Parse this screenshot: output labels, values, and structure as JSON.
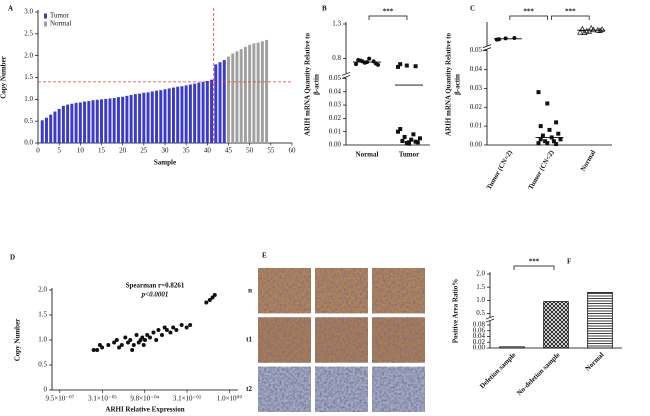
{
  "chart_data": [
    {
      "type": "bar",
      "panel": "A",
      "xlabel": "Sample",
      "ylabel": "Copy Number",
      "x": [
        1,
        2,
        3,
        4,
        5,
        6,
        7,
        8,
        9,
        10,
        11,
        12,
        13,
        14,
        15,
        16,
        17,
        18,
        19,
        20,
        21,
        22,
        23,
        24,
        25,
        26,
        27,
        28,
        29,
        30,
        31,
        32,
        33,
        34,
        35,
        36,
        37,
        38,
        39,
        40,
        41,
        42,
        43,
        44,
        45,
        46,
        47,
        48,
        49,
        50,
        51,
        52,
        53,
        54
      ],
      "series": [
        {
          "name": "Tumor",
          "color": "#3a3ad0",
          "values": [
            0.52,
            0.58,
            0.65,
            0.72,
            0.78,
            0.85,
            0.88,
            0.9,
            0.92,
            0.93,
            0.95,
            0.96,
            0.98,
            0.99,
            1.0,
            1.01,
            1.02,
            1.03,
            1.05,
            1.06,
            1.08,
            1.1,
            1.12,
            1.13,
            1.15,
            1.16,
            1.18,
            1.2,
            1.21,
            1.23,
            1.25,
            1.27,
            1.29,
            1.3,
            1.32,
            1.34,
            1.36,
            1.38,
            1.4,
            1.42,
            1.45,
            1.8,
            1.85,
            1.9,
            null,
            null,
            null,
            null,
            null,
            null,
            null,
            null,
            null,
            null
          ]
        },
        {
          "name": "Normal",
          "color": "#a0a0a0",
          "values": [
            null,
            null,
            null,
            null,
            null,
            null,
            null,
            null,
            null,
            null,
            null,
            null,
            null,
            null,
            null,
            null,
            null,
            null,
            null,
            null,
            null,
            null,
            null,
            null,
            null,
            null,
            null,
            null,
            null,
            null,
            null,
            null,
            null,
            null,
            null,
            null,
            null,
            null,
            null,
            null,
            null,
            null,
            null,
            null,
            1.98,
            2.05,
            2.1,
            2.15,
            2.2,
            2.25,
            2.28,
            2.3,
            2.33,
            2.36
          ]
        }
      ],
      "xlim": [
        0,
        60
      ],
      "xticks": [
        0,
        5,
        10,
        15,
        20,
        25,
        30,
        35,
        40,
        45,
        50,
        55,
        60
      ],
      "ylim": [
        0,
        3.0
      ],
      "yticks": [
        {
          "value": 0,
          "label": "0.0"
        },
        0.5,
        {
          "value": 1,
          "label": "1.0"
        },
        1.5,
        {
          "value": 2,
          "label": "2.0"
        },
        2.5,
        {
          "value": 3,
          "label": "3.0"
        }
      ],
      "reference_lines": {
        "y": 1.4,
        "x": 41.5,
        "color": "#e83a3a"
      },
      "legend": "upper-left"
    },
    {
      "type": "dot",
      "panel": "B",
      "ylabel": [
        "ARIH mRNA Quantity Relative to",
        "β-actin"
      ],
      "categories": [
        "Normal",
        "Tumor"
      ],
      "markers": [
        "circle",
        "square"
      ],
      "values": [
        [
          0.72,
          0.74,
          0.76,
          0.78,
          0.75,
          0.73,
          0.77,
          0.8,
          0.71,
          0.76
        ],
        [
          0.68,
          0.7,
          0.69,
          0.72,
          0.001,
          0.002,
          0.003,
          0.004,
          0.005,
          0.006,
          0.008,
          0.01,
          0.0015,
          0.0025,
          0.012,
          0.002
        ]
      ],
      "center_lines": [
        0.75,
        0.045
      ],
      "ylim": [
        0,
        1.3
      ],
      "ybreak": [
        0.05,
        0.6
      ],
      "yticks": [
        {
          "value": 0,
          "label": "0.00"
        },
        {
          "value": 0.01,
          "label": "0.01"
        },
        {
          "value": 0.02,
          "label": "0.02"
        },
        {
          "value": 0.03,
          "label": "0.03"
        },
        {
          "value": 0.04,
          "label": "0.04"
        },
        {
          "value": 0.05,
          "label": "0.05"
        },
        0.8,
        1.3
      ],
      "annotations": [
        {
          "text": "***",
          "between": [
            0,
            1
          ]
        }
      ]
    },
    {
      "type": "dot",
      "panel": "C",
      "ylabel": [
        "ARIH mRNA Quantity Relative to",
        "β-actin"
      ],
      "categories": [
        "Tumor (CN=2)",
        "Tumor (CN<2)",
        "Normal"
      ],
      "markers": [
        "circle",
        "square",
        "triangle"
      ],
      "values": [
        [
          0.52,
          0.55,
          0.56,
          0.53
        ],
        [
          0.028,
          0.022,
          0.012,
          0.01,
          0.008,
          0.006,
          0.005,
          0.004,
          0.003,
          0.002,
          0.002,
          0.001,
          0.001,
          0.0005,
          0.003
        ],
        [
          0.7,
          0.72,
          0.75,
          0.78,
          0.8,
          0.74,
          0.69,
          0.76,
          0.77,
          0.73
        ]
      ],
      "center_lines": [
        0.54,
        0.004,
        0.75
      ],
      "ylim": [
        0,
        0.9
      ],
      "ybreak": [
        0.05,
        0.4
      ],
      "yticks": [
        {
          "value": 0,
          "label": "0.00"
        },
        {
          "value": 0.01,
          "label": "0.01"
        },
        {
          "value": 0.02,
          "label": "0.02"
        },
        {
          "value": 0.03,
          "label": "0.03"
        },
        {
          "value": 0.04,
          "label": "0.04"
        },
        {
          "value": 0.05,
          "label": "0.05"
        }
      ],
      "annotations": [
        {
          "text": "***",
          "between": [
            0,
            1
          ]
        },
        {
          "text": "***",
          "between": [
            1,
            2
          ]
        }
      ]
    },
    {
      "type": "scatter",
      "panel": "D",
      "xlabel": "ARHI Relative Expression",
      "ylabel": "Copy Number",
      "annotations_text": [
        "Spearman r=0.8261",
        "p<0.0001"
      ],
      "xscale": "log",
      "color": "#111111",
      "x": [
        1.5e-05,
        2e-05,
        2.5e-05,
        3e-05,
        5e-05,
        8e-05,
        0.0001,
        0.00012,
        0.00015,
        0.0002,
        0.00025,
        0.0003,
        0.00035,
        0.0004,
        0.0005,
        0.0006,
        0.0007,
        0.0008,
        0.0009,
        0.001,
        0.0012,
        0.0015,
        0.002,
        0.0025,
        0.003,
        0.004,
        0.005,
        0.006,
        0.008,
        0.01,
        0.013,
        0.02,
        0.03,
        0.04,
        0.15,
        0.2,
        0.25,
        0.3
      ],
      "values": [
        0.8,
        0.8,
        0.9,
        0.85,
        0.9,
        0.95,
        1.0,
        0.85,
        0.9,
        1.05,
        0.95,
        1.0,
        0.8,
        0.9,
        1.1,
        0.95,
        1.0,
        1.05,
        0.9,
        1.0,
        1.1,
        1.05,
        1.15,
        1.0,
        1.2,
        1.1,
        1.25,
        1.2,
        1.15,
        1.25,
        1.2,
        1.3,
        1.25,
        1.3,
        1.75,
        1.8,
        1.85,
        1.9
      ],
      "xlim": [
        5e-07,
        2
      ],
      "xticks": [
        {
          "value": 9.5e-07,
          "label": "9.5×10⁻⁰⁷"
        },
        {
          "value": 3.1e-05,
          "label": "3.1×10⁻⁰⁵"
        },
        {
          "value": 0.00098,
          "label": "9.8×10⁻⁰⁴"
        },
        {
          "value": 0.031,
          "label": "3.1×10⁻⁰²"
        },
        {
          "value": 1,
          "label": "1.0×10⁰⁰"
        }
      ],
      "ylim": [
        0,
        2.0
      ],
      "yticks": [
        0,
        0.5,
        {
          "value": 1,
          "label": "1.0"
        },
        1.5,
        {
          "value": 2,
          "label": "2.0"
        }
      ]
    },
    {
      "type": "image_grid",
      "panel": "E",
      "row_labels": [
        "n",
        "t1",
        "t2"
      ],
      "columns": 3,
      "row_colors": [
        "#b58552",
        "#ad7d4e",
        "#9fadc9"
      ]
    },
    {
      "type": "bar",
      "panel": "F",
      "ylabel": "Positive Area Ratio%",
      "categories": [
        "Deletion sample",
        "No-deletion sample",
        "Normal"
      ],
      "values": [
        0.004,
        0.95,
        1.3
      ],
      "patterns": [
        "dots",
        "crosshatch",
        "hlines"
      ],
      "ylim": [
        0,
        2.0
      ],
      "ybreak": [
        0.09,
        0.4
      ],
      "yticks": [
        {
          "value": 0,
          "label": "0.00"
        },
        {
          "value": 0.02,
          "label": "0.02"
        },
        {
          "value": 0.04,
          "label": "0.04"
        },
        {
          "value": 0.06,
          "label": "0.06"
        },
        {
          "value": 0.08,
          "label": "0.08"
        },
        0.5,
        {
          "value": 1,
          "label": "1.0"
        },
        1.5,
        {
          "value": 2,
          "label": "2.0"
        }
      ],
      "annotations": [
        {
          "text": "***",
          "between": [
            0,
            1
          ]
        }
      ]
    }
  ]
}
